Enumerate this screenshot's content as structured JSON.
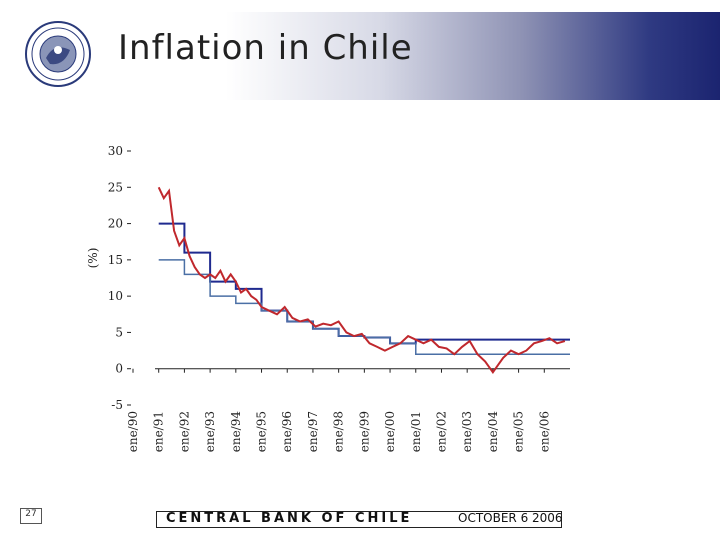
{
  "slide": {
    "title": "Inflation in Chile",
    "footer_bank": "CENTRAL BANK OF CHILE",
    "footer_date": "OCTOBER 6 2006",
    "slide_number": "27"
  },
  "colors": {
    "actual": "#c0282d",
    "target_mid": "#1f2a8f",
    "target_low": "#4a6fa5"
  },
  "chart_data": {
    "type": "line",
    "title": "",
    "xlabel": "",
    "ylabel": "(%)",
    "ylim": [
      -5,
      30
    ],
    "yticks": [
      -5,
      0,
      5,
      10,
      15,
      20,
      25,
      30
    ],
    "ytick_labels": [
      "-5",
      "0",
      "5",
      "10",
      "15",
      "20",
      "25",
      "30"
    ],
    "xlim": [
      1990,
      2007
    ],
    "xtick_labels": [
      "ene/90",
      "ene/91",
      "ene/92",
      "ene/93",
      "ene/94",
      "ene/95",
      "ene/96",
      "ene/97",
      "ene/98",
      "ene/99",
      "ene/00",
      "ene/01",
      "ene/02",
      "ene/03",
      "ene/04",
      "ene/05",
      "ene/06"
    ],
    "series": [
      {
        "key": "target_mid",
        "steps": [
          [
            1991,
            20
          ],
          [
            1992,
            16
          ],
          [
            1993,
            12
          ],
          [
            1994,
            11
          ],
          [
            1995,
            8
          ],
          [
            1996,
            6.5
          ],
          [
            1997,
            5.5
          ],
          [
            1998,
            4.5
          ],
          [
            1999,
            4.3
          ],
          [
            2000,
            3.5
          ],
          [
            2001,
            4
          ],
          [
            2007,
            4
          ]
        ]
      },
      {
        "key": "target_low",
        "steps": [
          [
            1991,
            15
          ],
          [
            1992,
            13
          ],
          [
            1993,
            10
          ],
          [
            1994,
            9
          ],
          [
            1995,
            8
          ],
          [
            1996,
            6.5
          ],
          [
            1997,
            5.5
          ],
          [
            1998,
            4.5
          ],
          [
            1999,
            4.3
          ],
          [
            2000,
            3.5
          ],
          [
            2001,
            2
          ],
          [
            2007,
            2
          ]
        ]
      },
      {
        "key": "actual",
        "x": [
          1991.0,
          1991.2,
          1991.4,
          1991.6,
          1991.8,
          1992.0,
          1992.2,
          1992.4,
          1992.6,
          1992.8,
          1993.0,
          1993.2,
          1993.4,
          1993.6,
          1993.8,
          1994.0,
          1994.2,
          1994.4,
          1994.6,
          1994.8,
          1995.0,
          1995.3,
          1995.6,
          1995.9,
          1996.2,
          1996.5,
          1996.8,
          1997.1,
          1997.4,
          1997.7,
          1998.0,
          1998.3,
          1998.6,
          1998.9,
          1999.2,
          1999.5,
          1999.8,
          2000.1,
          2000.4,
          2000.7,
          2001.0,
          2001.3,
          2001.6,
          2001.9,
          2002.2,
          2002.5,
          2002.8,
          2003.1,
          2003.4,
          2003.7,
          2004.0,
          2004.2,
          2004.4,
          2004.7,
          2005.0,
          2005.3,
          2005.6,
          2005.9,
          2006.2,
          2006.5,
          2006.8
        ],
        "y": [
          25,
          23.5,
          24.5,
          19,
          17,
          18,
          15.5,
          14,
          13,
          12.5,
          13,
          12.5,
          13.5,
          12,
          13,
          12,
          10.5,
          11,
          10,
          9.5,
          8.5,
          8,
          7.5,
          8.5,
          7,
          6.5,
          6.8,
          5.8,
          6.2,
          6,
          6.5,
          5,
          4.5,
          4.8,
          3.5,
          3,
          2.5,
          3,
          3.5,
          4.5,
          4,
          3.5,
          4,
          3,
          2.8,
          2,
          3,
          3.8,
          2,
          1,
          -0.5,
          0.5,
          1.5,
          2.5,
          2,
          2.5,
          3.5,
          3.8,
          4.2,
          3.5,
          3.8
        ]
      }
    ]
  }
}
